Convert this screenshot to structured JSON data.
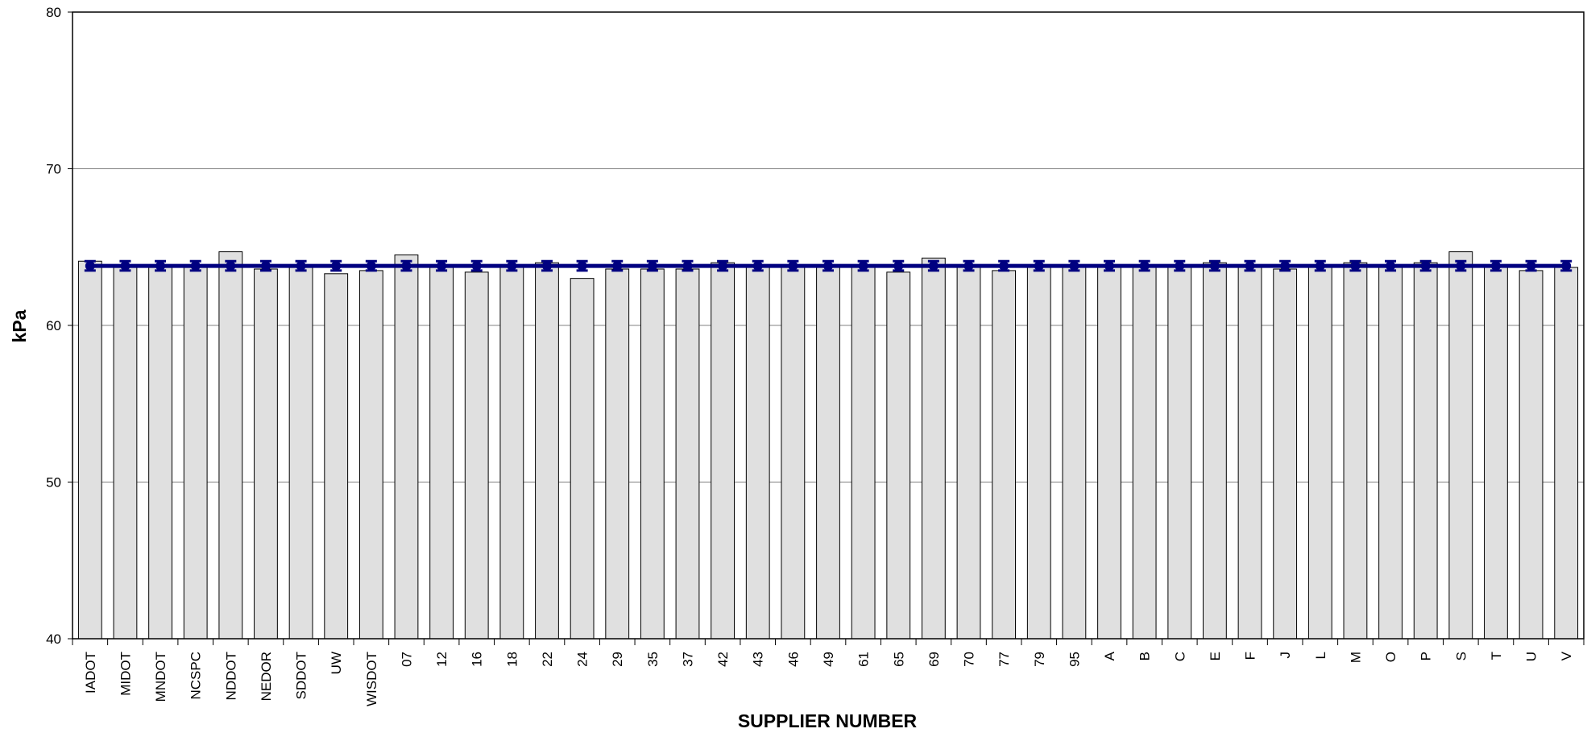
{
  "chart_data": {
    "type": "bar",
    "xlabel": "SUPPLIER NUMBER",
    "ylabel": "kPa",
    "categories": [
      "IADOT",
      "MIDOT",
      "MNDOT",
      "NCSPC",
      "NDDOT",
      "NEDOR",
      "SDDOT",
      "UW",
      "WISDOT",
      "07",
      "12",
      "16",
      "18",
      "22",
      "24",
      "29",
      "35",
      "37",
      "42",
      "43",
      "46",
      "49",
      "61",
      "65",
      "69",
      "70",
      "77",
      "79",
      "95",
      "A",
      "B",
      "C",
      "E",
      "F",
      "J",
      "L",
      "M",
      "O",
      "P",
      "S",
      "T",
      "U",
      "V"
    ],
    "series": [
      {
        "type": "bar",
        "color": "#e0e0e0",
        "values": [
          64.1,
          63.7,
          63.7,
          63.7,
          64.7,
          63.6,
          63.7,
          63.3,
          63.5,
          64.5,
          63.7,
          63.4,
          63.8,
          64.0,
          63.0,
          63.6,
          63.6,
          63.6,
          64.0,
          63.8,
          63.8,
          63.8,
          63.8,
          63.4,
          64.3,
          63.8,
          63.5,
          63.8,
          63.8,
          63.8,
          63.8,
          63.8,
          64.0,
          63.8,
          63.6,
          63.8,
          64.0,
          63.8,
          64.0,
          64.7,
          63.8,
          63.5,
          63.7
        ]
      },
      {
        "type": "line",
        "color": "#000080",
        "values": [
          63.8,
          63.8,
          63.8,
          63.8,
          63.8,
          63.8,
          63.8,
          63.8,
          63.8,
          63.8,
          63.8,
          63.8,
          63.8,
          63.8,
          63.8,
          63.8,
          63.8,
          63.8,
          63.8,
          63.8,
          63.8,
          63.8,
          63.8,
          63.8,
          63.8,
          63.8,
          63.8,
          63.8,
          63.8,
          63.8,
          63.8,
          63.8,
          63.8,
          63.8,
          63.8,
          63.8,
          63.8,
          63.8,
          63.8,
          63.8,
          63.8,
          63.8,
          63.8
        ],
        "errors": [
          0.3,
          0.3,
          0.3,
          0.3,
          0.3,
          0.3,
          0.3,
          0.3,
          0.3,
          0.3,
          0.3,
          0.3,
          0.3,
          0.3,
          0.3,
          0.3,
          0.3,
          0.3,
          0.3,
          0.3,
          0.3,
          0.3,
          0.3,
          0.3,
          0.3,
          0.3,
          0.3,
          0.3,
          0.3,
          0.3,
          0.3,
          0.3,
          0.3,
          0.3,
          0.3,
          0.3,
          0.3,
          0.3,
          0.3,
          0.3,
          0.3,
          0.3,
          0.3
        ]
      }
    ],
    "ylim": [
      40,
      80
    ],
    "yticks": [
      40,
      50,
      60,
      70,
      80
    ],
    "grid": true
  }
}
